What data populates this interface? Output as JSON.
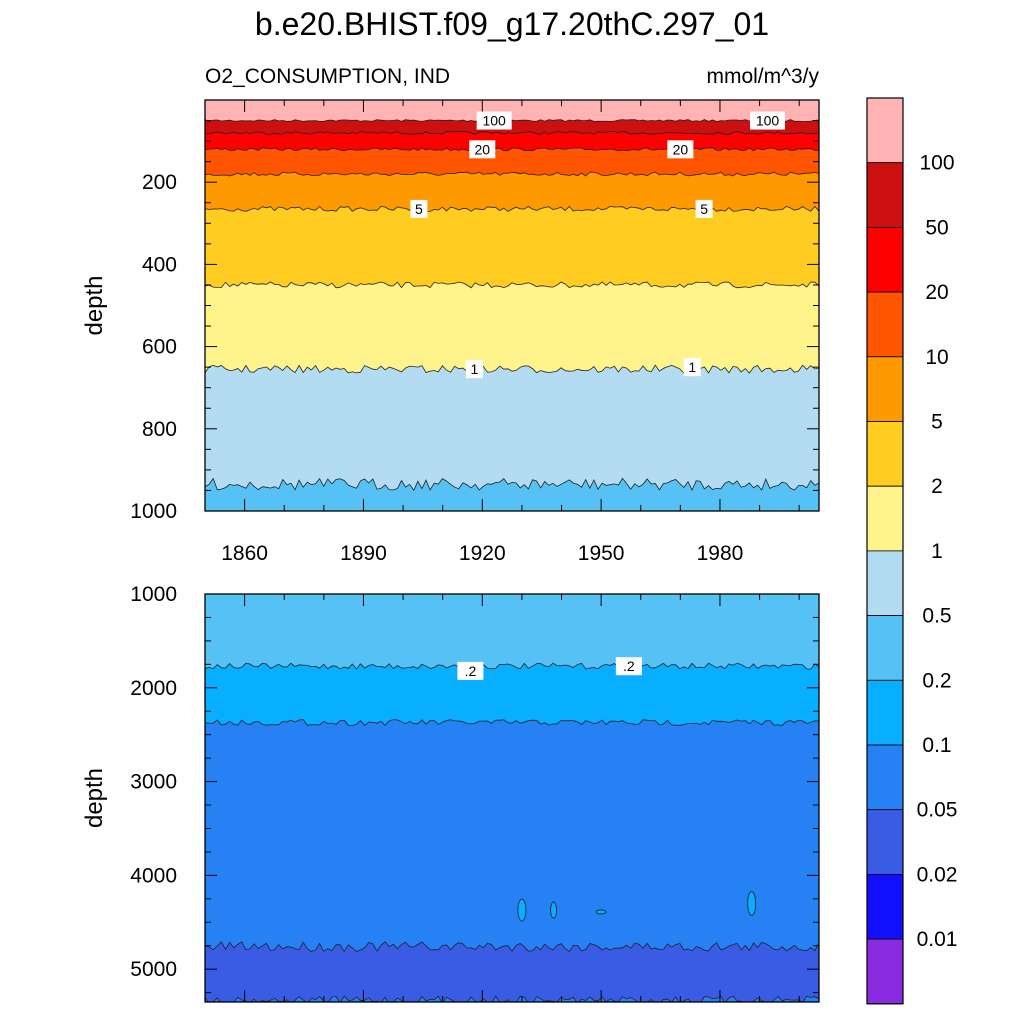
{
  "title": "b.e20.BHIST.f09_g17.20thC.297_01",
  "subtitle_left": "O2_CONSUMPTION, IND",
  "subtitle_right": "mmol/m^3/y",
  "colorbar": {
    "colors": [
      "#FFB3B3",
      "#CC1010",
      "#FF0000",
      "#FF5500",
      "#FF9900",
      "#FFCC22",
      "#FFF48C",
      "#B3DCF3",
      "#55C1F5",
      "#08AEFF",
      "#2682F4",
      "#3A5BE4",
      "#1010FF",
      "#8A2BE2"
    ],
    "tick_labels": [
      "100",
      "50",
      "20",
      "10",
      "5",
      "2",
      "1",
      "0.5",
      "0.2",
      "0.1",
      "0.05",
      "0.02",
      "0.01"
    ]
  },
  "chart_data": [
    {
      "type": "contour",
      "panel": "upper",
      "xlabel": "",
      "ylabel": "depth",
      "y_reversed": true,
      "xlim": [
        1850,
        2005
      ],
      "ylim": [
        1000,
        0
      ],
      "x_ticks": [
        1860,
        1890,
        1920,
        1950,
        1980
      ],
      "y_ticks": [
        200,
        400,
        600,
        800,
        1000
      ],
      "contour_boundaries": [
        {
          "level": "100",
          "depth": 50
        },
        {
          "level": "50",
          "depth": 80
        },
        {
          "level": "20",
          "depth": 120
        },
        {
          "level": "10",
          "depth": 180
        },
        {
          "level": "5",
          "depth": 265
        },
        {
          "level": "2",
          "depth": 450
        },
        {
          "level": "1",
          "depth": 655
        },
        {
          "level": "0.5",
          "depth": 935
        }
      ],
      "contour_labels": [
        {
          "text": "100",
          "x": 1923,
          "depth": 50
        },
        {
          "text": "100",
          "x": 1992,
          "depth": 50
        },
        {
          "text": "20",
          "x": 1920,
          "depth": 120
        },
        {
          "text": "20",
          "x": 1970,
          "depth": 120
        },
        {
          "text": "5",
          "x": 1904,
          "depth": 265
        },
        {
          "text": "5",
          "x": 1976,
          "depth": 265
        },
        {
          "text": "1",
          "x": 1918,
          "depth": 655
        },
        {
          "text": "1",
          "x": 1973,
          "depth": 650
        }
      ]
    },
    {
      "type": "contour",
      "panel": "lower",
      "xlabel": "",
      "ylabel": "depth",
      "y_reversed": true,
      "xlim": [
        1850,
        2005
      ],
      "ylim": [
        5350,
        1000
      ],
      "x_ticks": [
        1860,
        1890,
        1920,
        1950,
        1980
      ],
      "y_ticks": [
        1000,
        2000,
        3000,
        4000,
        5000
      ],
      "contour_boundaries": [
        {
          "level": "0.2",
          "depth": 1770
        },
        {
          "level": "0.1",
          "depth": 2370
        },
        {
          "level": "0.05",
          "depth": 4760
        },
        {
          "level": "0.1",
          "depth": 5330
        }
      ],
      "contour_labels": [
        {
          "text": ".2",
          "x": 1917,
          "depth": 1820
        },
        {
          "text": ".2",
          "x": 1957,
          "depth": 1770
        }
      ]
    }
  ]
}
